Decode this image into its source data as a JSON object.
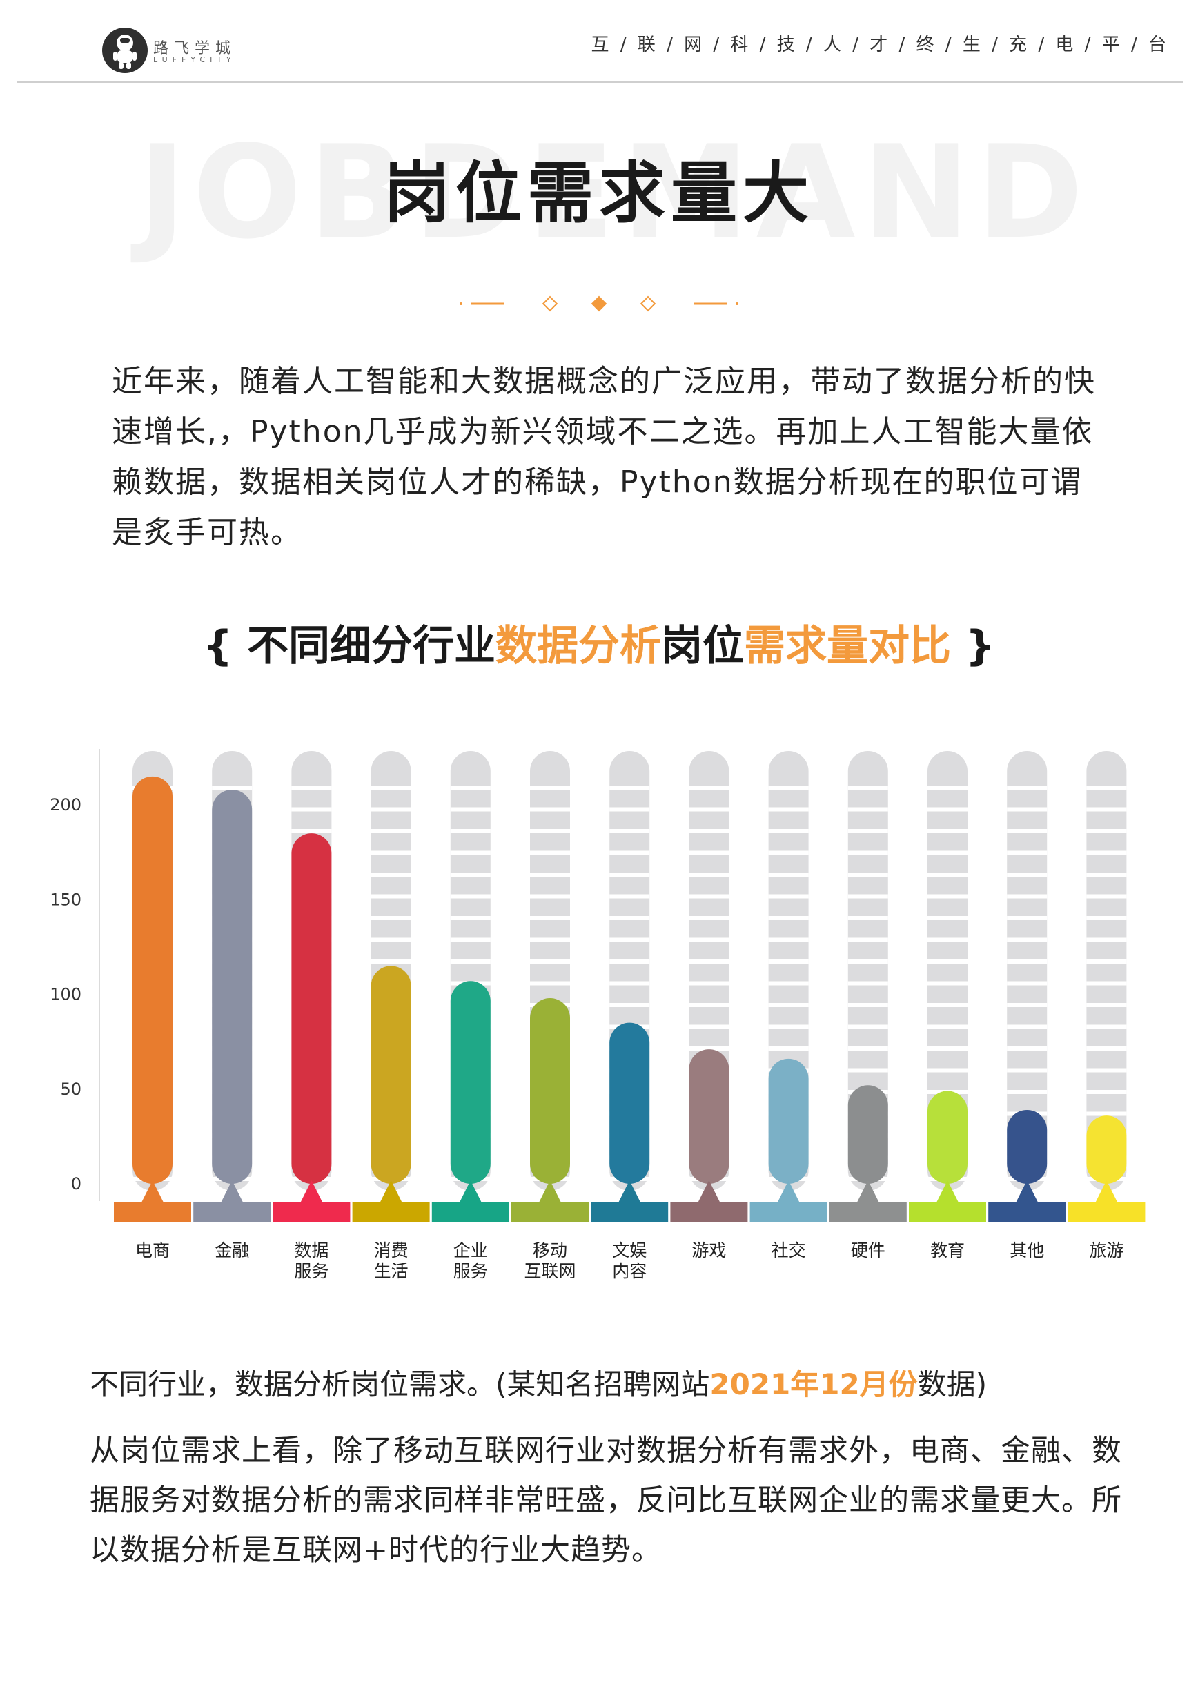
{
  "header": {
    "brand_name": "路飞学城",
    "brand_sub": "LUFFYCITY",
    "tagline": "互 / 联 / 网 / 科 / 技 / 人 / 才 / 终 / 生 / 充 / 电 / 平 / 台"
  },
  "hero": {
    "background_word": "JOBDEMAND",
    "title": "岗位需求量大"
  },
  "intro": {
    "text": "近年来，随着人工智能和大数据概念的广泛应用，带动了数据分析的快速增长,，Python几乎成为新兴领域不二之选。再加上人工智能大量依赖数据，数据相关岗位人才的稀缺，Python数据分析现在的职位可谓是炙手可热。"
  },
  "section": {
    "open_brace": "{ ",
    "part1": "不同细分行业",
    "part2": "数据分析",
    "part3": "岗位",
    "part4": "需求量对比",
    "close_brace": " }"
  },
  "chart_data": {
    "type": "bar",
    "categories": [
      "电商",
      "金融",
      "数据服务",
      "消费生活",
      "企业服务",
      "移动互联网",
      "文娱内容",
      "游戏",
      "社交",
      "硬件",
      "教育",
      "其他",
      "旅游"
    ],
    "category_lines": [
      [
        "电商"
      ],
      [
        "金融"
      ],
      [
        "数据",
        "服务"
      ],
      [
        "消费",
        "生活"
      ],
      [
        "企业",
        "服务"
      ],
      [
        "移动",
        "互联网"
      ],
      [
        "文娱",
        "内容"
      ],
      [
        "游戏"
      ],
      [
        "社交"
      ],
      [
        "硬件"
      ],
      [
        "教育"
      ],
      [
        "其他"
      ],
      [
        "旅游"
      ]
    ],
    "values": [
      215,
      208,
      185,
      115,
      107,
      98,
      85,
      71,
      66,
      52,
      49,
      39,
      36
    ],
    "colors": [
      "#e87c2e",
      "#8a90a3",
      "#d63142",
      "#cba621",
      "#1fa887",
      "#9ab136",
      "#237a9d",
      "#9a7c7e",
      "#7bb0c6",
      "#8c8e8f",
      "#b7e03a",
      "#36538c",
      "#f5e331"
    ],
    "base_colors": [
      "#e87c2e",
      "#8a90a3",
      "#ef2a4d",
      "#cba700",
      "#17a586",
      "#9ab136",
      "#1f7a96",
      "#8f6a6e",
      "#76b0c6",
      "#8e9090",
      "#b5e02d",
      "#33558e",
      "#f7e128"
    ],
    "track_color": "#dcdcde",
    "yticks": [
      0,
      50,
      100,
      150,
      200
    ],
    "ylim": [
      0,
      225
    ],
    "title": "",
    "xlabel": "",
    "ylabel": ""
  },
  "footer": {
    "line1_a": "不同行业，数据分析岗位需求。(某知名招聘网站",
    "line1_highlight": "2021年12月份",
    "line1_b": "数据)",
    "paragraph": "从岗位需求上看，除了移动互联网行业对数据分析有需求外，电商、金融、数据服务对数据分析的需求同样非常旺盛，反问比互联网企业的需求量更大。所以数据分析是互联网+时代的行业大趋势。"
  }
}
